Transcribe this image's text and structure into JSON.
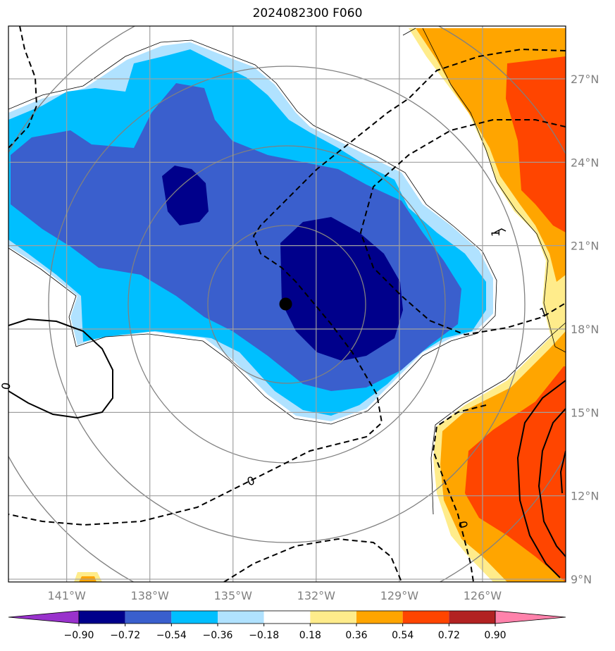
{
  "chart_data": {
    "type": "heatmap",
    "title": "2024082300 F060",
    "x_ticks": [
      "141°W",
      "138°W",
      "135°W",
      "132°W",
      "129°W",
      "126°W"
    ],
    "y_ticks": [
      "9°N",
      "12°N",
      "15°N",
      "18°N",
      "21°N",
      "24°N",
      "27°N"
    ],
    "xlim": [
      -143.1,
      -123.0
    ],
    "ylim": [
      8.9,
      28.9
    ],
    "grid": true,
    "colorbar": {
      "orientation": "horizontal",
      "levels": [
        "−0.90",
        "−0.72",
        "−0.54",
        "−0.36",
        "−0.18",
        "0.18",
        "0.36",
        "0.54",
        "0.72",
        "0.90"
      ],
      "colors": [
        "#9932cc",
        "#00008b",
        "#3a5fcd",
        "#00bfff",
        "#b0e2ff",
        "#ffffff",
        "#ffec8b",
        "#ffa500",
        "#ff4500",
        "#b22222",
        "#ff82ab"
      ],
      "extend": "both"
    },
    "contour_labels": [
      "0",
      "0",
      "1",
      "0",
      "1"
    ],
    "storm_center": {
      "lon": -133.1,
      "lat": 18.9
    },
    "range_rings_center": {
      "lon": -133.1,
      "lat": 18.9
    }
  }
}
